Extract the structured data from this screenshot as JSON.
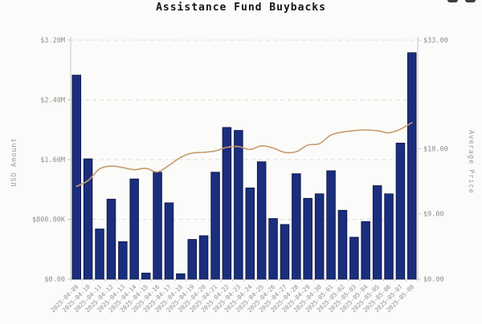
{
  "header": {
    "title": "Assistance Fund Buybacks"
  },
  "toolbar": {
    "icons": [
      "toolbar-icon-left",
      "toolbar-icon-right"
    ]
  },
  "colors": {
    "background": "#fbfbf9",
    "title_text": "#141414",
    "grid": "#dcdcdc",
    "axis": "#c8c8c8",
    "label": "#8f8f8f",
    "bar_fill": "#1b2e7e",
    "bar_border": "#0d1a4d",
    "line": "#c59b6d"
  },
  "chart_data": {
    "type": "bar",
    "subtype": "bar+line dual axis",
    "title": "Assistance Fund Buybacks",
    "xlabel": "",
    "grid": "horizontal dashed",
    "legend": "none",
    "categories": [
      "2025-04-09",
      "2025-04-10",
      "2025-04-11",
      "2025-04-12",
      "2025-04-13",
      "2025-04-14",
      "2025-04-15",
      "2025-04-16",
      "2025-04-17",
      "2025-04-18",
      "2025-04-19",
      "2025-04-20",
      "2025-04-21",
      "2025-04-22",
      "2025-04-23",
      "2025-04-24",
      "2025-04-25",
      "2025-04-26",
      "2025-04-27",
      "2025-04-28",
      "2025-04-29",
      "2025-04-30",
      "2025-05-01",
      "2025-05-02",
      "2025-05-03",
      "2025-05-04",
      "2025-05-05",
      "2025-05-06",
      "2025-05-07",
      "2025-05-08"
    ],
    "series": [
      {
        "name": "USD Amount",
        "type": "bar",
        "axis": "left",
        "color": "#1b2e7e",
        "border_color": "#0d1a4d",
        "values": [
          2730000,
          1610000,
          670000,
          1070000,
          500000,
          1340000,
          80000,
          1430000,
          1020000,
          70000,
          530000,
          580000,
          1430000,
          2030000,
          1990000,
          1220000,
          1570000,
          810000,
          730000,
          1410000,
          1080000,
          1140000,
          1450000,
          920000,
          560000,
          770000,
          1250000,
          1140000,
          1820000,
          3030000
        ]
      },
      {
        "name": "Average Price",
        "type": "line",
        "axis": "right",
        "color": "#c59b6d",
        "values": [
          12.8,
          13.6,
          15.2,
          15.6,
          15.4,
          15.1,
          15.3,
          14.8,
          15.7,
          16.8,
          17.4,
          17.5,
          17.7,
          18.2,
          18.3,
          17.9,
          18.4,
          18.1,
          17.5,
          17.6,
          18.5,
          18.7,
          19.9,
          20.3,
          20.5,
          20.6,
          20.5,
          20.2,
          20.7,
          21.6
        ]
      }
    ],
    "left_axis": {
      "title": "USD Amount",
      "min": 0,
      "max": 3200000,
      "ticks": [
        {
          "label": "$3.20M",
          "value": 3200000
        },
        {
          "label": "$2.40M",
          "value": 2400000
        },
        {
          "label": "$1.60M",
          "value": 1600000
        },
        {
          "label": "$800.00K",
          "value": 800000
        },
        {
          "label": "$0.00",
          "value": 0
        }
      ]
    },
    "right_axis": {
      "title": "Average Price",
      "min": 0,
      "max": 33,
      "ticks": [
        {
          "label": "$33.00",
          "value": 33
        },
        {
          "label": "$18.00",
          "value": 18
        },
        {
          "label": "$9.00",
          "value": 9
        },
        {
          "label": "$0.00",
          "value": 0
        }
      ]
    }
  }
}
